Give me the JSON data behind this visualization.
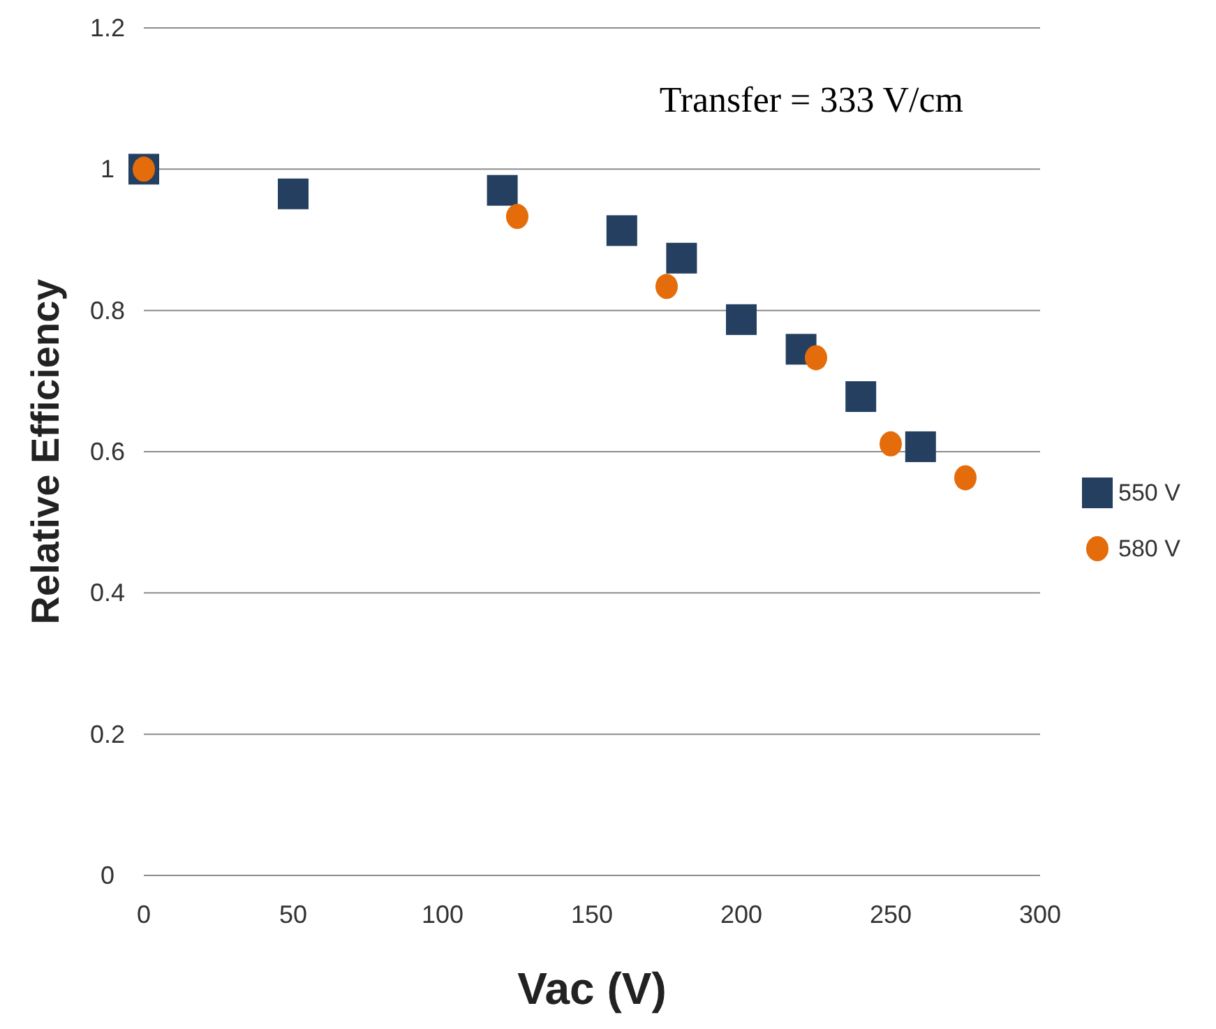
{
  "chart_data": {
    "type": "scatter",
    "xlabel": "Vac (V)",
    "ylabel": "Relative Efficiency",
    "annotations": [
      "Transfer = 333 V/cm"
    ],
    "xlim": [
      0,
      300
    ],
    "xticks": [
      0,
      50,
      100,
      150,
      200,
      250,
      300
    ],
    "ylim": [
      0,
      1.2
    ],
    "yticks": [
      "0",
      0.2,
      0.4,
      0.6,
      0.8,
      "1",
      1.2
    ],
    "grid": "y",
    "legend": "right",
    "series": [
      {
        "name": "550 V",
        "color": "#243f60",
        "marker": "square",
        "x": [
          0,
          50,
          120,
          160,
          180,
          200,
          220,
          240,
          260
        ],
        "values": [
          1.0,
          0.965,
          0.97,
          0.913,
          0.874,
          0.787,
          0.745,
          0.678,
          0.607
        ]
      },
      {
        "name": "580 V",
        "color": "#e46c0a",
        "marker": "circle",
        "x": [
          0,
          125,
          175,
          225,
          250,
          275
        ],
        "values": [
          1.0,
          0.933,
          0.834,
          0.733,
          0.611,
          0.563
        ]
      }
    ]
  }
}
